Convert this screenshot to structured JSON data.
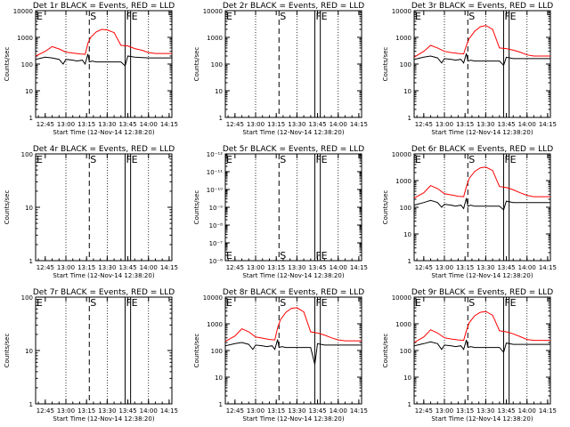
{
  "figure": {
    "colors": {
      "events": "#000000",
      "lld": "#ff0000",
      "frame": "#000000",
      "background": "#ffffff"
    },
    "x_ticks": [
      "12:45",
      "13:00",
      "13:15",
      "13:30",
      "13:45",
      "14:00",
      "14:15"
    ],
    "xlabel": "Start Time (12-Nov-14 12:38:20)",
    "ylabel": "Counts/sec"
  },
  "chart_data": [
    {
      "type": "line",
      "title": "Det 1r BLACK = Events, RED = LLD",
      "y_scale": "log",
      "y_ticks": [
        "1",
        "10",
        "100",
        "1000",
        "10000"
      ],
      "ylim": [
        1,
        10000
      ],
      "x_range": [
        "12:38",
        "14:17"
      ],
      "markers": [
        {
          "label": "E",
          "x": "12:38",
          "style": "solid"
        },
        {
          "label": "S",
          "x": "13:17",
          "style": "dash"
        },
        {
          "label": "F",
          "x": "13:43",
          "style": "solid"
        },
        {
          "label": "E",
          "x": "13:47",
          "style": "solid"
        }
      ],
      "series": [
        {
          "key": "events",
          "x": [
            "12:38",
            "12:45",
            "12:50",
            "12:55",
            "12:58",
            "13:00",
            "13:05",
            "13:08",
            "13:12",
            "13:14",
            "13:16",
            "13:17",
            "13:19",
            "13:22",
            "13:30",
            "13:40",
            "13:43",
            "13:45",
            "13:50",
            "14:00",
            "14:10",
            "14:17"
          ],
          "y": [
            150,
            180,
            170,
            150,
            100,
            150,
            140,
            130,
            140,
            100,
            240,
            120,
            130,
            120,
            120,
            120,
            85,
            200,
            180,
            170,
            170,
            170
          ]
        },
        {
          "key": "lld",
          "x": [
            "12:38",
            "12:45",
            "12:50",
            "12:55",
            "13:00",
            "13:05",
            "13:10",
            "13:14",
            "13:16",
            "13:18",
            "13:22",
            "13:26",
            "13:30",
            "13:35",
            "13:40",
            "13:45",
            "13:50",
            "13:55",
            "14:00",
            "14:05",
            "14:10",
            "14:17"
          ],
          "y": [
            200,
            300,
            450,
            370,
            280,
            260,
            240,
            230,
            600,
            1000,
            1600,
            2000,
            1900,
            1500,
            500,
            480,
            380,
            330,
            270,
            250,
            250,
            250
          ]
        }
      ]
    },
    {
      "type": "line",
      "title": "Det 2r BLACK = Events, RED = LLD",
      "y_scale": "log",
      "y_ticks": [
        "1",
        "10",
        "100",
        "1000",
        "10000"
      ],
      "ylim": [
        1,
        10000
      ],
      "x_range": [
        "12:38",
        "14:17"
      ],
      "markers": [
        {
          "label": "E",
          "x": "12:38",
          "style": "solid"
        },
        {
          "label": "S",
          "x": "13:17",
          "style": "dash"
        },
        {
          "label": "F",
          "x": "13:43",
          "style": "solid"
        },
        {
          "label": "E",
          "x": "13:47",
          "style": "solid"
        }
      ],
      "series": []
    },
    {
      "type": "line",
      "title": "Det 3r BLACK = Events, RED = LLD",
      "y_scale": "log",
      "y_ticks": [
        "1",
        "10",
        "100",
        "1000",
        "10000"
      ],
      "ylim": [
        1,
        10000
      ],
      "x_range": [
        "12:38",
        "14:17"
      ],
      "markers": [
        {
          "label": "E",
          "x": "12:38",
          "style": "solid"
        },
        {
          "label": "S",
          "x": "13:17",
          "style": "dash"
        },
        {
          "label": "F",
          "x": "13:43",
          "style": "solid"
        },
        {
          "label": "E",
          "x": "13:47",
          "style": "solid"
        }
      ],
      "series": [
        {
          "key": "events",
          "x": [
            "12:38",
            "12:45",
            "12:50",
            "12:55",
            "12:58",
            "13:00",
            "13:05",
            "13:08",
            "13:12",
            "13:14",
            "13:16",
            "13:17",
            "13:19",
            "13:22",
            "13:30",
            "13:40",
            "13:43",
            "13:45",
            "13:50",
            "14:00",
            "14:10",
            "14:17"
          ],
          "y": [
            150,
            180,
            200,
            170,
            110,
            160,
            150,
            140,
            150,
            110,
            250,
            130,
            140,
            130,
            130,
            130,
            90,
            180,
            160,
            160,
            160,
            160
          ]
        },
        {
          "key": "lld",
          "x": [
            "12:38",
            "12:45",
            "12:50",
            "12:55",
            "13:00",
            "13:05",
            "13:10",
            "13:14",
            "13:16",
            "13:18",
            "13:22",
            "13:26",
            "13:30",
            "13:35",
            "13:40",
            "13:45",
            "13:50",
            "13:55",
            "14:00",
            "14:05",
            "14:10",
            "14:17"
          ],
          "y": [
            180,
            300,
            500,
            400,
            300,
            270,
            250,
            240,
            500,
            900,
            1700,
            2500,
            2800,
            2000,
            400,
            380,
            330,
            280,
            220,
            200,
            200,
            200
          ]
        }
      ]
    },
    {
      "type": "line",
      "title": "Det 4r BLACK = Events, RED = LLD",
      "y_scale": "log",
      "y_ticks": [
        "1",
        "10",
        "100"
      ],
      "ylim": [
        1,
        100
      ],
      "x_range": [
        "12:38",
        "14:17"
      ],
      "markers": [
        {
          "label": "E",
          "x": "12:38",
          "style": "solid"
        },
        {
          "label": "S",
          "x": "13:17",
          "style": "dash"
        },
        {
          "label": "F",
          "x": "13:43",
          "style": "solid"
        },
        {
          "label": "E",
          "x": "13:47",
          "style": "solid"
        }
      ],
      "series": []
    },
    {
      "type": "line",
      "title": "Det 5r BLACK = Events, RED = LLD",
      "y_scale": "log",
      "y_ticks": [
        "10⁻⁶",
        "10⁻⁷",
        "10⁻⁸",
        "10⁻⁹",
        "10⁻¹⁰",
        "10⁻¹¹",
        "10⁻¹²"
      ],
      "ylim": [
        1e-12,
        1e-06
      ],
      "x_range": [
        "12:38",
        "14:17"
      ],
      "markers": [
        {
          "label": "E",
          "x": "12:38",
          "style": "solid"
        },
        {
          "label": "S",
          "x": "13:17",
          "style": "dash"
        },
        {
          "label": "F",
          "x": "13:43",
          "style": "solid"
        },
        {
          "label": "E",
          "x": "13:47",
          "style": "solid"
        }
      ],
      "series": []
    },
    {
      "type": "line",
      "title": "Det 6r BLACK = Events, RED = LLD",
      "y_scale": "log",
      "y_ticks": [
        "1",
        "10",
        "100",
        "1000",
        "10000"
      ],
      "ylim": [
        1,
        10000
      ],
      "x_range": [
        "12:38",
        "14:17"
      ],
      "markers": [
        {
          "label": "E",
          "x": "12:38",
          "style": "solid"
        },
        {
          "label": "S",
          "x": "13:17",
          "style": "dash"
        },
        {
          "label": "F",
          "x": "13:43",
          "style": "solid"
        },
        {
          "label": "E",
          "x": "13:47",
          "style": "solid"
        }
      ],
      "series": [
        {
          "key": "events",
          "x": [
            "12:38",
            "12:45",
            "12:50",
            "12:55",
            "12:58",
            "13:00",
            "13:05",
            "13:08",
            "13:12",
            "13:14",
            "13:16",
            "13:17",
            "13:19",
            "13:22",
            "13:30",
            "13:40",
            "13:43",
            "13:45",
            "13:50",
            "14:00",
            "14:10",
            "14:17"
          ],
          "y": [
            120,
            150,
            180,
            150,
            100,
            130,
            120,
            110,
            120,
            90,
            220,
            110,
            120,
            110,
            110,
            110,
            80,
            170,
            150,
            150,
            150,
            150
          ]
        },
        {
          "key": "lld",
          "x": [
            "12:38",
            "12:45",
            "12:50",
            "12:55",
            "13:00",
            "13:05",
            "13:10",
            "13:14",
            "13:16",
            "13:18",
            "13:22",
            "13:26",
            "13:30",
            "13:35",
            "13:40",
            "13:45",
            "13:50",
            "13:55",
            "14:00",
            "14:05",
            "14:10",
            "14:17"
          ],
          "y": [
            220,
            350,
            650,
            500,
            320,
            290,
            260,
            250,
            600,
            1200,
            2200,
            3000,
            3200,
            2400,
            600,
            550,
            450,
            350,
            280,
            250,
            250,
            250
          ]
        }
      ]
    },
    {
      "type": "line",
      "title": "Det 7r BLACK = Events, RED = LLD",
      "y_scale": "log",
      "y_ticks": [
        "1",
        "10",
        "100"
      ],
      "ylim": [
        1,
        100
      ],
      "x_range": [
        "12:38",
        "14:17"
      ],
      "markers": [
        {
          "label": "E",
          "x": "12:38",
          "style": "solid"
        },
        {
          "label": "S",
          "x": "13:17",
          "style": "dash"
        },
        {
          "label": "F",
          "x": "13:43",
          "style": "solid"
        },
        {
          "label": "E",
          "x": "13:47",
          "style": "solid"
        }
      ],
      "series": []
    },
    {
      "type": "line",
      "title": "Det 8r BLACK = Events, RED = LLD",
      "y_scale": "log",
      "y_ticks": [
        "1",
        "10",
        "100",
        "1000",
        "10000"
      ],
      "ylim": [
        1,
        10000
      ],
      "x_range": [
        "12:38",
        "14:17"
      ],
      "markers": [
        {
          "label": "E",
          "x": "12:38",
          "style": "solid"
        },
        {
          "label": "S",
          "x": "13:17",
          "style": "dash"
        },
        {
          "label": "F",
          "x": "13:43",
          "style": "solid"
        },
        {
          "label": "E",
          "x": "13:47",
          "style": "solid"
        }
      ],
      "series": [
        {
          "key": "events",
          "x": [
            "12:38",
            "12:45",
            "12:50",
            "12:55",
            "12:58",
            "13:00",
            "13:05",
            "13:08",
            "13:12",
            "13:14",
            "13:16",
            "13:17",
            "13:19",
            "13:22",
            "13:30",
            "13:40",
            "13:43",
            "13:45",
            "13:50",
            "14:00",
            "14:10",
            "14:17"
          ],
          "y": [
            150,
            180,
            200,
            170,
            110,
            160,
            150,
            140,
            150,
            110,
            260,
            130,
            140,
            130,
            130,
            130,
            30,
            180,
            160,
            160,
            160,
            160
          ]
        },
        {
          "key": "lld",
          "x": [
            "12:38",
            "12:45",
            "12:50",
            "12:55",
            "13:00",
            "13:05",
            "13:10",
            "13:14",
            "13:16",
            "13:18",
            "13:22",
            "13:26",
            "13:30",
            "13:35",
            "13:40",
            "13:45",
            "13:50",
            "13:55",
            "14:00",
            "14:05",
            "14:10",
            "14:17"
          ],
          "y": [
            220,
            350,
            650,
            500,
            320,
            290,
            260,
            250,
            700,
            1400,
            2700,
            3800,
            4000,
            2800,
            500,
            450,
            380,
            300,
            250,
            230,
            230,
            230
          ]
        }
      ]
    },
    {
      "type": "line",
      "title": "Det 9r BLACK = Events, RED = LLD",
      "y_scale": "log",
      "y_ticks": [
        "1",
        "10",
        "100",
        "1000",
        "10000"
      ],
      "ylim": [
        1,
        10000
      ],
      "x_range": [
        "12:38",
        "14:17"
      ],
      "markers": [
        {
          "label": "E",
          "x": "12:38",
          "style": "solid"
        },
        {
          "label": "S",
          "x": "13:17",
          "style": "dash"
        },
        {
          "label": "F",
          "x": "13:43",
          "style": "solid"
        },
        {
          "label": "E",
          "x": "13:47",
          "style": "solid"
        }
      ],
      "series": [
        {
          "key": "events",
          "x": [
            "12:38",
            "12:45",
            "12:50",
            "12:55",
            "12:58",
            "13:00",
            "13:05",
            "13:08",
            "13:12",
            "13:14",
            "13:16",
            "13:17",
            "13:19",
            "13:22",
            "13:30",
            "13:40",
            "13:43",
            "13:45",
            "13:50",
            "14:00",
            "14:10",
            "14:17"
          ],
          "y": [
            150,
            180,
            210,
            180,
            110,
            160,
            150,
            140,
            150,
            110,
            250,
            130,
            140,
            130,
            130,
            130,
            85,
            190,
            170,
            170,
            170,
            170
          ]
        },
        {
          "key": "lld",
          "x": [
            "12:38",
            "12:45",
            "12:50",
            "12:55",
            "13:00",
            "13:05",
            "13:10",
            "13:14",
            "13:16",
            "13:18",
            "13:22",
            "13:26",
            "13:30",
            "13:35",
            "13:40",
            "13:45",
            "13:50",
            "13:55",
            "14:00",
            "14:05",
            "14:10",
            "14:17"
          ],
          "y": [
            200,
            320,
            600,
            450,
            300,
            270,
            250,
            240,
            550,
            1100,
            2000,
            2700,
            2900,
            2100,
            550,
            500,
            420,
            330,
            260,
            240,
            240,
            240
          ]
        }
      ]
    }
  ]
}
